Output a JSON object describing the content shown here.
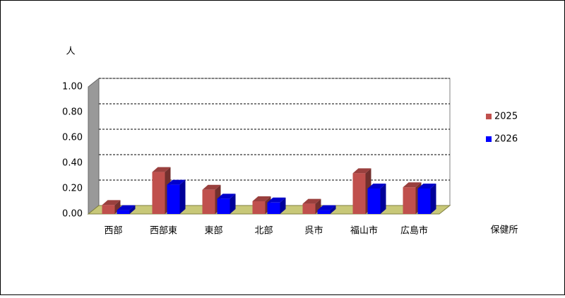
{
  "chart_data": {
    "type": "bar3d",
    "y_label": "人",
    "x_label": "保健所",
    "categories": [
      "西部",
      "西部東",
      "東部",
      "北部",
      "呉市",
      "福山市",
      "広島市"
    ],
    "series": [
      {
        "name": "2025",
        "color": "#c0504d",
        "values": [
          0.07,
          0.33,
          0.19,
          0.1,
          0.08,
          0.32,
          0.21
        ]
      },
      {
        "name": "2026",
        "color": "#0000ff",
        "values": [
          0.03,
          0.23,
          0.12,
          0.09,
          0.03,
          0.2,
          0.2
        ]
      }
    ],
    "ylim": [
      0,
      1
    ],
    "yticks": [
      {
        "value": 0,
        "label": "0.00"
      },
      {
        "value": 0.2,
        "label": "0.20"
      },
      {
        "value": 0.4,
        "label": "0.40"
      },
      {
        "value": 0.6,
        "label": "0.60"
      },
      {
        "value": 0.8,
        "label": "0.80"
      },
      {
        "value": 1,
        "label": "1.00"
      }
    ],
    "grid": true
  }
}
